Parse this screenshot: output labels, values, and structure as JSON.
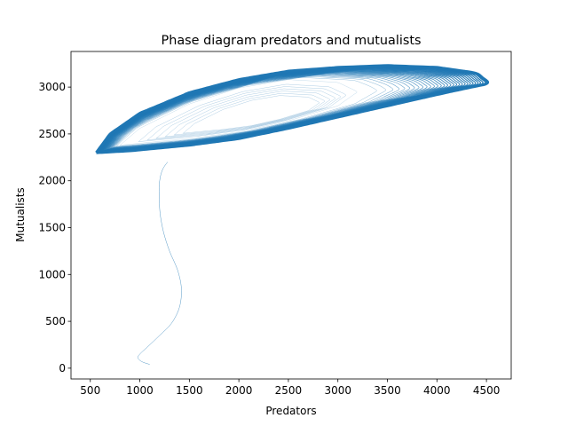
{
  "chart_data": {
    "type": "line",
    "title": "Phase diagram predators and mutualists",
    "xlabel": "Predators",
    "ylabel": "Mutualists",
    "xlim": [
      305,
      4750
    ],
    "ylim": [
      -115,
      3380
    ],
    "xticks": [
      500,
      1000,
      1500,
      2000,
      2500,
      3000,
      3500,
      4000,
      4500
    ],
    "yticks": [
      0,
      500,
      1000,
      1500,
      2000,
      2500,
      3000
    ],
    "grid": false,
    "legend": "none",
    "line_color": "#1f77b4",
    "series": [
      {
        "transient_path": [
          [
            1100,
            40
          ],
          [
            1020,
            70
          ],
          [
            980,
            110
          ],
          [
            1000,
            150
          ],
          [
            1080,
            230
          ],
          [
            1200,
            350
          ],
          [
            1320,
            480
          ],
          [
            1400,
            650
          ],
          [
            1420,
            850
          ],
          [
            1380,
            1050
          ],
          [
            1300,
            1250
          ],
          [
            1240,
            1450
          ],
          [
            1205,
            1650
          ],
          [
            1195,
            1850
          ],
          [
            1200,
            2000
          ],
          [
            1230,
            2120
          ],
          [
            1280,
            2200
          ]
        ],
        "limit_cycle_outer": {
          "lower_branch": [
            [
              560,
              2300
            ],
            [
              900,
              2320
            ],
            [
              1500,
              2380
            ],
            [
              2000,
              2450
            ],
            [
              2500,
              2560
            ],
            [
              3000,
              2680
            ],
            [
              3500,
              2800
            ],
            [
              4000,
              2920
            ],
            [
              4350,
              3000
            ],
            [
              4530,
              3040
            ]
          ],
          "upper_branch": [
            [
              4530,
              3040
            ],
            [
              4400,
              3150
            ],
            [
              4000,
              3210
            ],
            [
              3500,
              3230
            ],
            [
              3000,
              3210
            ],
            [
              2500,
              3170
            ],
            [
              2000,
              3080
            ],
            [
              1500,
              2940
            ],
            [
              1000,
              2720
            ],
            [
              700,
              2500
            ],
            [
              560,
              2300
            ]
          ]
        },
        "limit_cycle_inner": {
          "lower_branch": [
            [
              800,
              2380
            ],
            [
              1500,
              2450
            ],
            [
              2000,
              2520
            ],
            [
              2500,
              2640
            ],
            [
              3000,
              2800
            ],
            [
              3200,
              2950
            ]
          ],
          "upper_branch": [
            [
              3200,
              2950
            ],
            [
              3000,
              3050
            ],
            [
              2500,
              3080
            ],
            [
              2000,
              2990
            ],
            [
              1500,
              2820
            ],
            [
              1000,
              2560
            ],
            [
              800,
              2380
            ]
          ]
        },
        "spiral_loops": 32
      }
    ]
  }
}
